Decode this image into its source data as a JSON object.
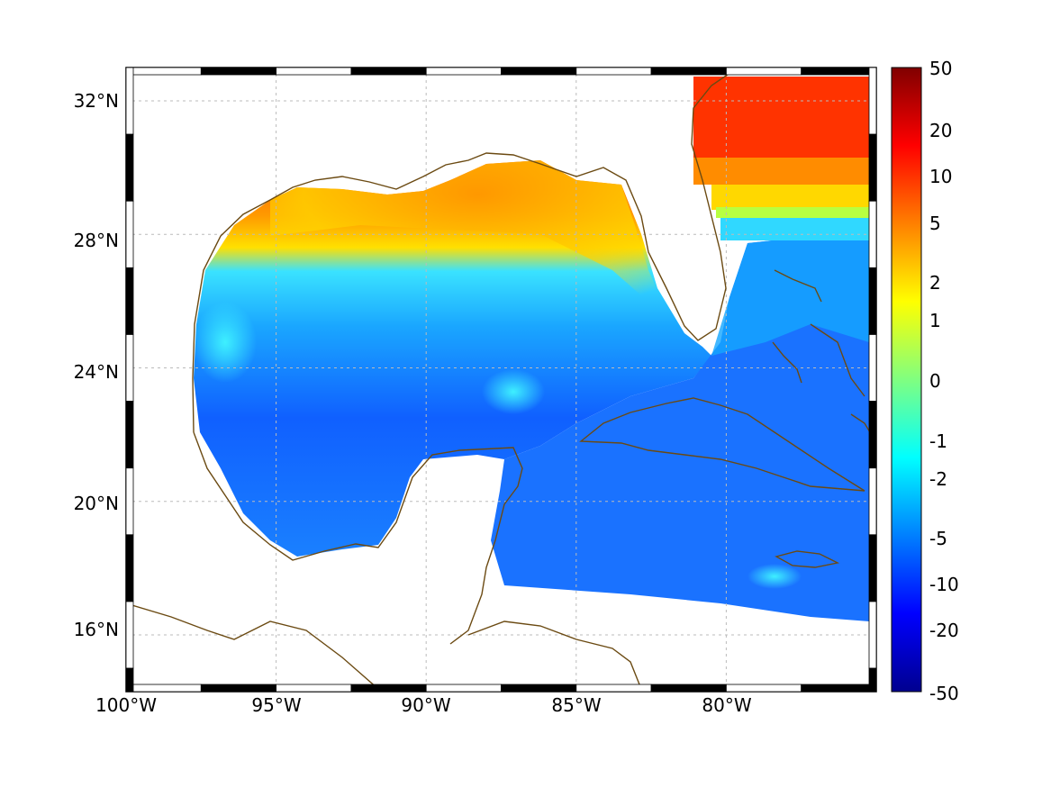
{
  "map": {
    "x_axis": {
      "ticks": [
        "100°W",
        "95°W",
        "90°W",
        "85°W",
        "80°W"
      ],
      "values": [
        -100,
        -95,
        -90,
        -85,
        -80
      ],
      "range": [
        -100,
        -75
      ]
    },
    "y_axis": {
      "ticks": [
        "32°N",
        "28°N",
        "24°N",
        "20°N",
        "16°N"
      ],
      "values": [
        32,
        28,
        24,
        20,
        16
      ],
      "range": [
        14.3,
        33
      ]
    },
    "grid": true,
    "colors": {
      "coastline": "#6b4a12",
      "grid": "#bbbbbb",
      "frame_dark": "#000000",
      "frame_light": "#ffffff"
    }
  },
  "colorbar": {
    "labels": [
      "50",
      "20",
      "10",
      "5",
      "2",
      "1",
      "0",
      "-1",
      "-2",
      "-5",
      "-10",
      "-20",
      "-50"
    ],
    "colormap": "jet",
    "scale": "symmetric-log"
  }
}
